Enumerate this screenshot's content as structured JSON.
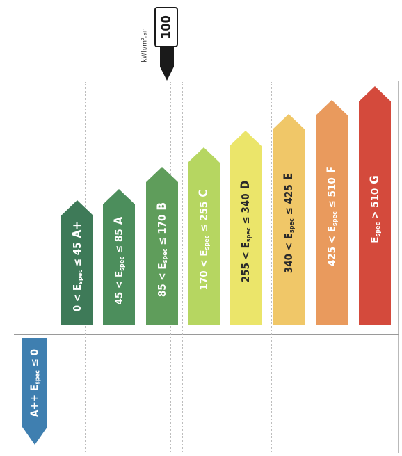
{
  "indicator": {
    "value": "100",
    "unit": "kWh/m².an"
  },
  "classes": [
    {
      "id": "aplus",
      "pre": "0 < E",
      "post": " ≤ 45",
      "letter": "A+",
      "color": "#3e7a58",
      "text": "light"
    },
    {
      "id": "a",
      "pre": "45 < E",
      "post": " ≤ 85",
      "letter": "A",
      "color": "#4c8e5c",
      "text": "light"
    },
    {
      "id": "b",
      "pre": "85 < E",
      "post": " ≤ 170",
      "letter": "B",
      "color": "#5f9d5b",
      "text": "light"
    },
    {
      "id": "c",
      "pre": "170 < E",
      "post": " ≤ 255",
      "letter": "C",
      "color": "#b6d661",
      "text": "light"
    },
    {
      "id": "d",
      "pre": "255 < E",
      "post": " ≤ 340",
      "letter": "D",
      "color": "#ebe56a",
      "text": "dark"
    },
    {
      "id": "e",
      "pre": "340 < E",
      "post": " ≤ 425",
      "letter": "E",
      "color": "#f0c768",
      "text": "dark"
    },
    {
      "id": "f",
      "pre": "425 < E",
      "post": " ≤ 510",
      "letter": "F",
      "color": "#e99a5d",
      "text": "light"
    },
    {
      "id": "g",
      "pre": "E",
      "post": " > 510",
      "letter": "G",
      "color": "#d44a3c",
      "text": "light"
    }
  ],
  "special_class": {
    "id": "aplusplus",
    "prefix": "A++ E",
    "sub": "spec",
    "suffix": " ≤ 0",
    "color": "#3f7fb0"
  },
  "subscript": "spec"
}
